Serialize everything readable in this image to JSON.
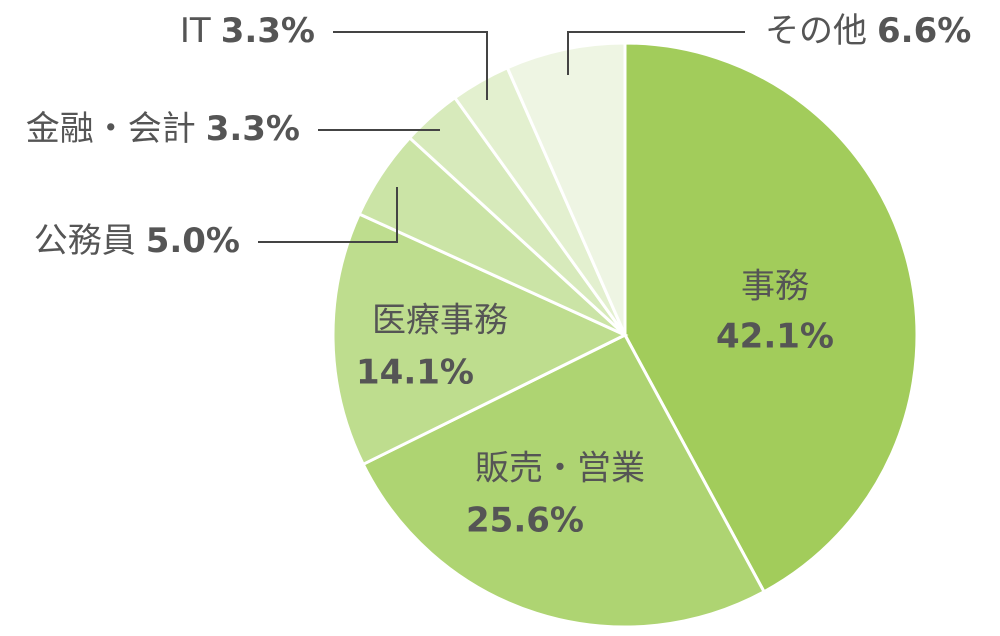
{
  "chart_data": {
    "type": "pie",
    "categories": [
      "事務",
      "販売・営業",
      "医療事務",
      "公務員",
      "金融・会計",
      "IT",
      "その他"
    ],
    "values": [
      42.1,
      25.6,
      14.1,
      5.0,
      3.3,
      3.3,
      6.6
    ],
    "value_labels": [
      "42.1%",
      "25.6%",
      "14.1%",
      "5.0%",
      "3.3%",
      "3.3%",
      "6.6%"
    ],
    "colors": [
      "#a2cc5b",
      "#aed472",
      "#bedd8e",
      "#cbe4a6",
      "#d7eabb",
      "#e3f0cf",
      "#eef5e3"
    ]
  }
}
